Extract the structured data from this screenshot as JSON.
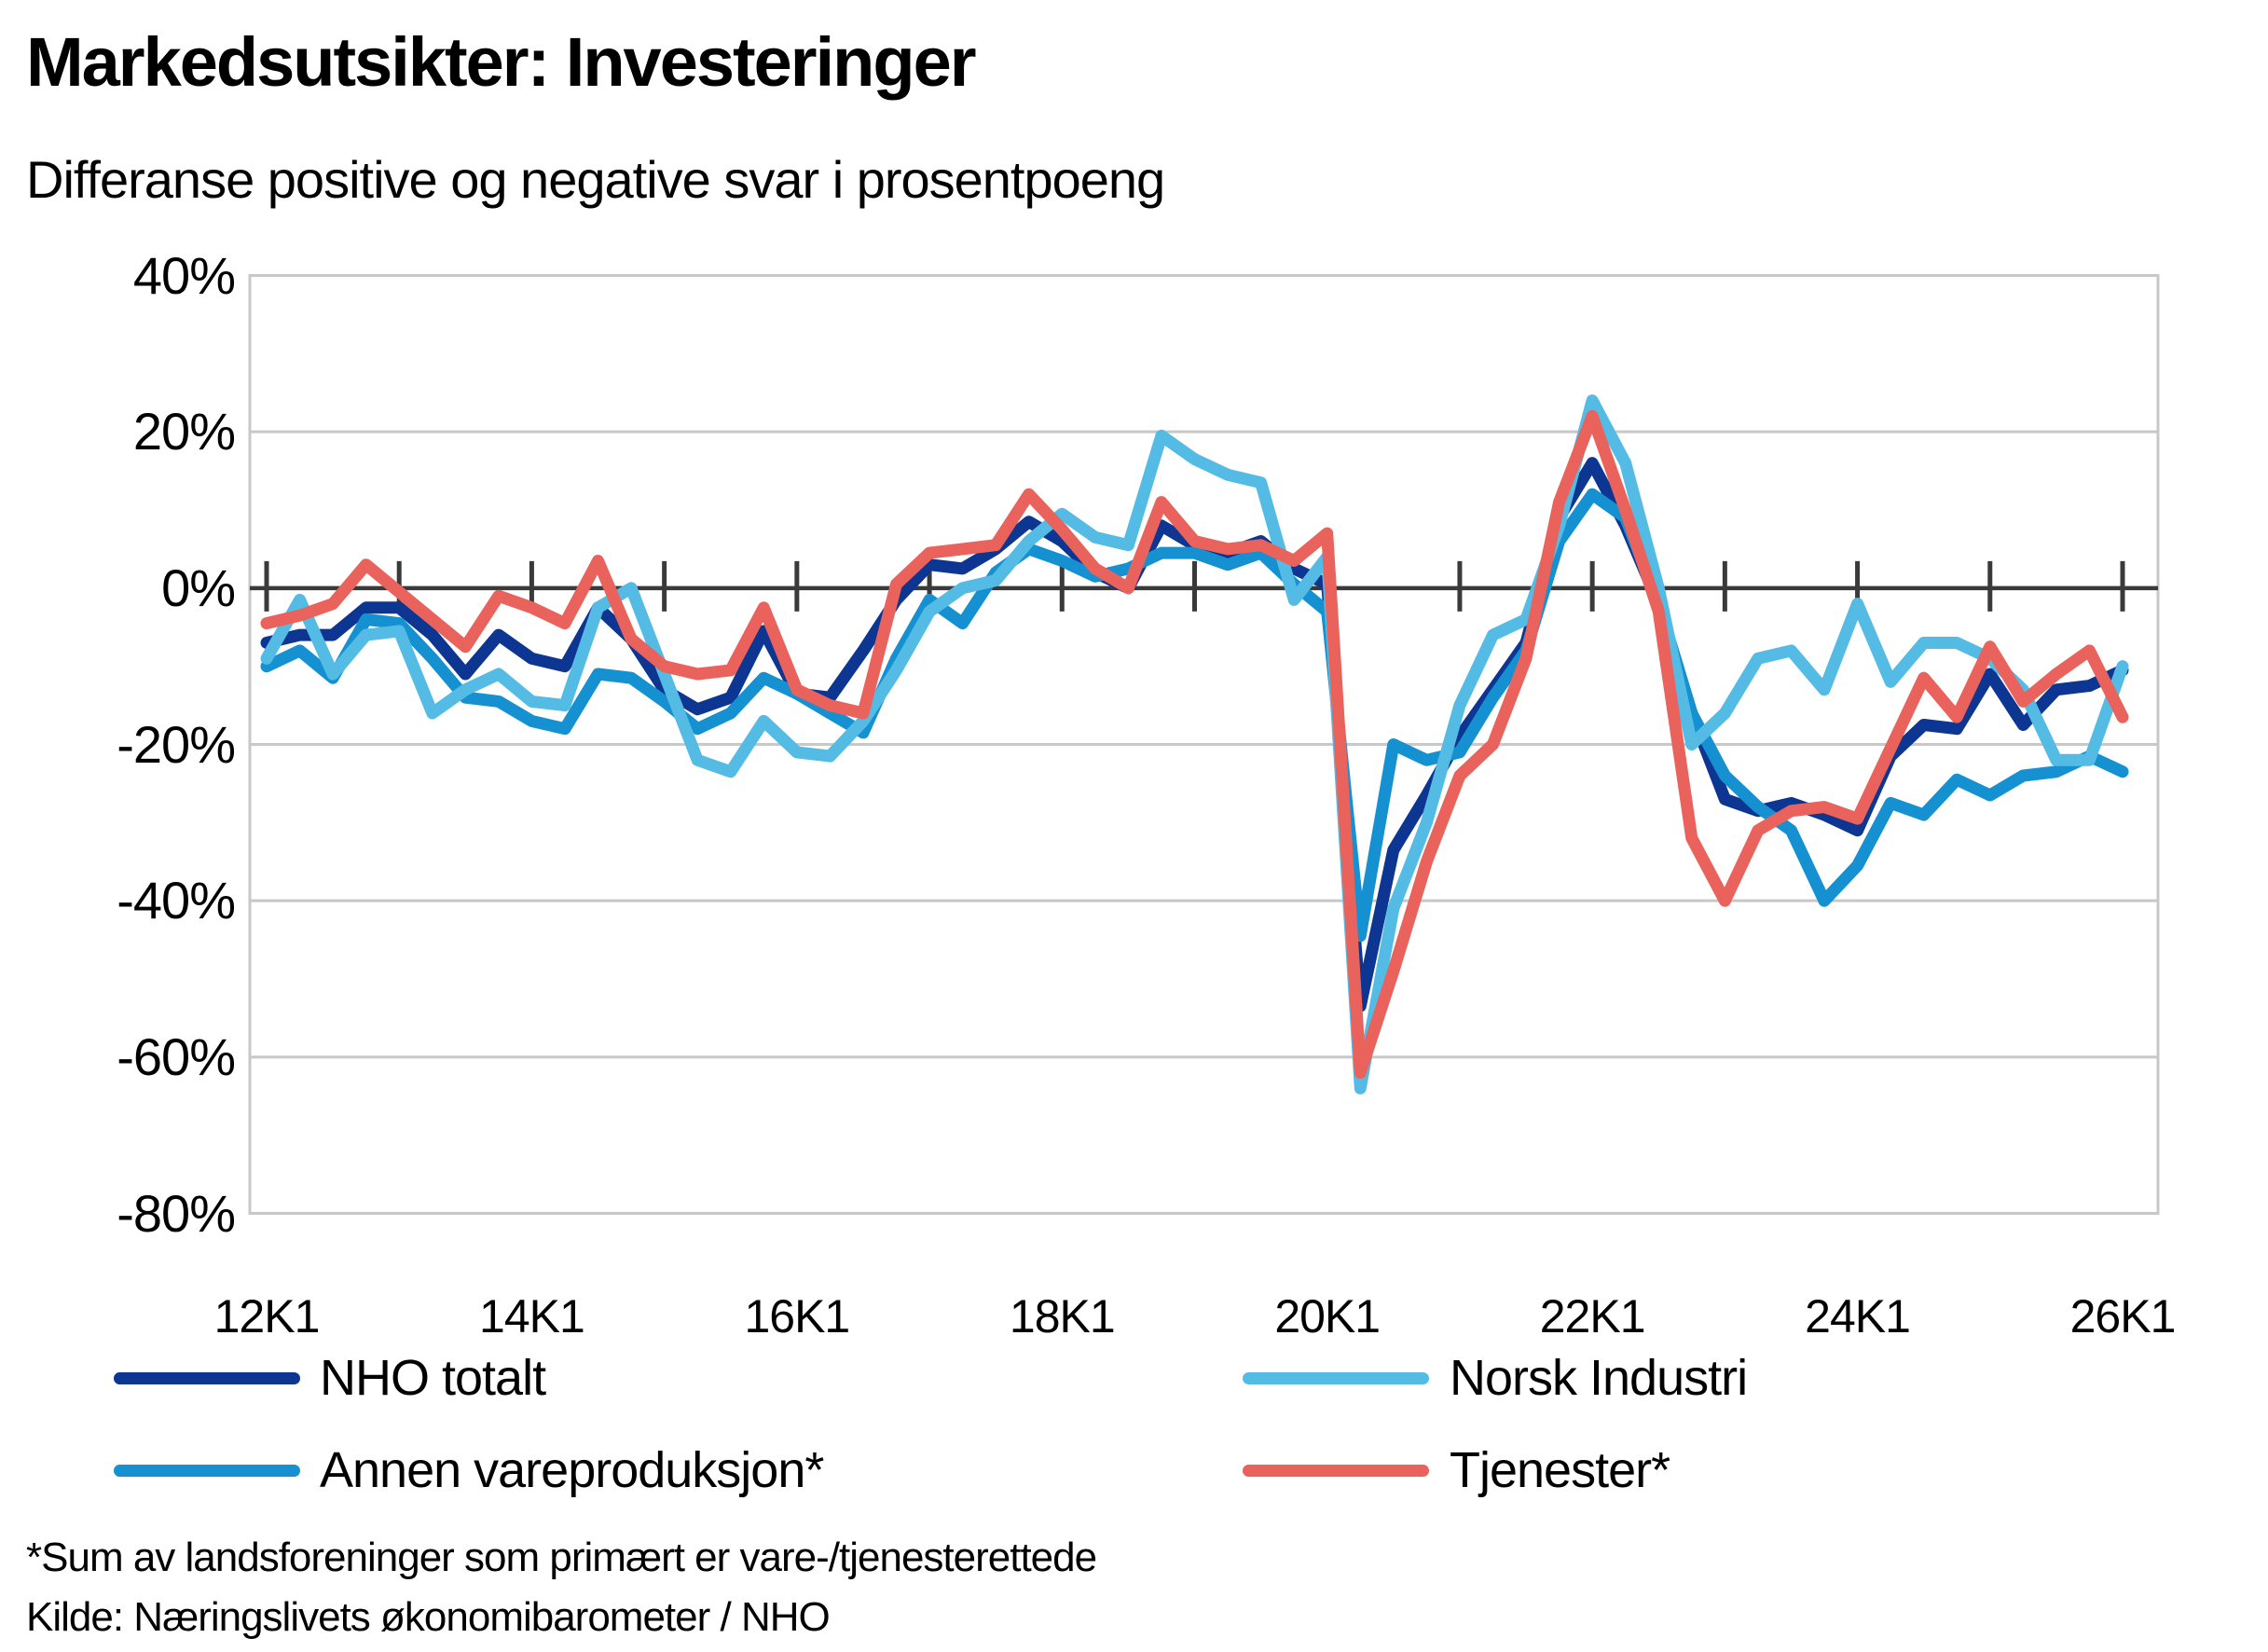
{
  "title": "Markedsutsikter: Investeringer",
  "subtitle": "Differanse positive og negative svar i prosentpoeng",
  "footnotes": [
    "*Sum av landsforeninger som primært er vare-/tjenesterettede",
    "Kilde: Næringslivets økonomibarometer / NHO"
  ],
  "colors": {
    "grid": "#c8c8c8",
    "zero_axis": "#3a3a3a",
    "background": "#ffffff",
    "text": "#000000"
  },
  "chart_data": {
    "type": "line",
    "title": "Markedsutsikter: Investeringer",
    "subtitle": "Differanse positive og negative svar i prosentpoeng",
    "ylim": [
      -80,
      40
    ],
    "grid": "horizontal",
    "legend_position": "bottom",
    "y_tick_values": [
      40,
      20,
      0,
      -20,
      -40,
      -60,
      -80
    ],
    "y_tick_labels": [
      "40%",
      "20%",
      "0%",
      "-20%",
      "-40%",
      "-60%",
      "-80%"
    ],
    "x_tick_labels": [
      "12K1",
      "14K1",
      "16K1",
      "18K1",
      "20K1",
      "22K1",
      "24K1",
      "26K1"
    ],
    "x": [
      "12K1",
      "12K2",
      "12K3",
      "12K4",
      "13K1",
      "13K2",
      "13K3",
      "13K4",
      "14K1",
      "14K2",
      "14K3",
      "14K4",
      "15K1",
      "15K2",
      "15K3",
      "15K4",
      "16K1",
      "16K2",
      "16K3",
      "16K4",
      "17K1",
      "17K2",
      "17K3",
      "17K4",
      "18K1",
      "18K2",
      "18K3",
      "18K4",
      "19K1",
      "19K2",
      "19K3",
      "19K4",
      "20K1",
      "20K2",
      "20K3",
      "20K4",
      "21K1",
      "21K2",
      "21K3",
      "21K4",
      "22K1",
      "22K2",
      "22K3",
      "22K4",
      "23K1",
      "23K2",
      "23K3",
      "23K4",
      "24K1",
      "24K2",
      "24K3",
      "24K4",
      "25K1",
      "25K2",
      "25K3",
      "25K4",
      "26K1"
    ],
    "series": [
      {
        "name": "NHO totalt",
        "color": "#0d3692",
        "values": [
          -7,
          -6,
          -6,
          -2.5,
          -2.5,
          -6,
          -11,
          -6,
          -9,
          -10,
          -2.5,
          -6.5,
          -13,
          -15.5,
          -14,
          -5.5,
          -13.5,
          -14,
          -8,
          -1.5,
          3,
          2.5,
          5,
          8.5,
          6,
          2,
          0,
          8,
          5.5,
          4.5,
          6,
          2.5,
          0.5,
          -53.5,
          -33.5,
          -26.5,
          -19,
          -13,
          -7,
          9,
          16,
          8,
          -2,
          -16,
          -27,
          -28.5,
          -27.5,
          -29,
          -31,
          -21.5,
          -17.5,
          -18,
          -11,
          -17.5,
          -13,
          -12.5,
          -10.5
        ]
      },
      {
        "name": "Norsk Industri",
        "color": "#54bce4",
        "values": [
          -9,
          -1.5,
          -11,
          -6,
          -5.5,
          -16,
          -13,
          -11,
          -14.5,
          -15,
          -2.5,
          0,
          -11,
          -22,
          -23.5,
          -17,
          -21,
          -21.5,
          -17,
          -10.5,
          -3,
          0,
          1,
          6,
          9.5,
          6.5,
          5.5,
          19.5,
          16.5,
          14.5,
          13.5,
          -1.5,
          4,
          -64,
          -41,
          -30,
          -15,
          -6,
          -4,
          8,
          24,
          16,
          0,
          -20,
          -16,
          -9,
          -8,
          -13,
          -2,
          -12,
          -7,
          -7,
          -9,
          -13,
          -22,
          -22,
          -10
        ]
      },
      {
        "name": "Annen vareproduksjon*",
        "color": "#1591d2",
        "values": [
          -10,
          -8,
          -11.5,
          -4,
          -4.5,
          -9,
          -14,
          -14.5,
          -17,
          -18,
          -11,
          -11.5,
          -14.5,
          -18,
          -16,
          -11.5,
          -13.5,
          -16,
          -18.5,
          -9,
          -1.5,
          -4.5,
          2,
          5,
          3.5,
          1.5,
          2.5,
          4.5,
          4.5,
          3,
          4.5,
          0.5,
          -3,
          -44.5,
          -20,
          -22,
          -21,
          -14,
          -8,
          6,
          12,
          9,
          -2,
          -16,
          -24,
          -28,
          -31,
          -40,
          -35.5,
          -27.5,
          -29,
          -24.5,
          -26.5,
          -24,
          -23.5,
          -21.5,
          -23.5
        ]
      },
      {
        "name": "Tjenester*",
        "color": "#e9625b",
        "values": [
          -4.5,
          -3.5,
          -2,
          3,
          -0.5,
          -4,
          -7.5,
          -1,
          -2.5,
          -4.5,
          3.5,
          -6.5,
          -10,
          -11,
          -10.5,
          -2.5,
          -13,
          -15,
          -16,
          0.5,
          4.5,
          5,
          5.5,
          12,
          7.5,
          2.5,
          0,
          11,
          6,
          5,
          5.5,
          3.5,
          7,
          -62,
          -49,
          -35,
          -24,
          -20,
          -9,
          11,
          22,
          10,
          -3,
          -32,
          -40,
          -31,
          -28.5,
          -28,
          -29.5,
          -20.5,
          -11.5,
          -16.5,
          -7.5,
          -14.5,
          -11,
          -8,
          -16.5
        ]
      }
    ]
  }
}
